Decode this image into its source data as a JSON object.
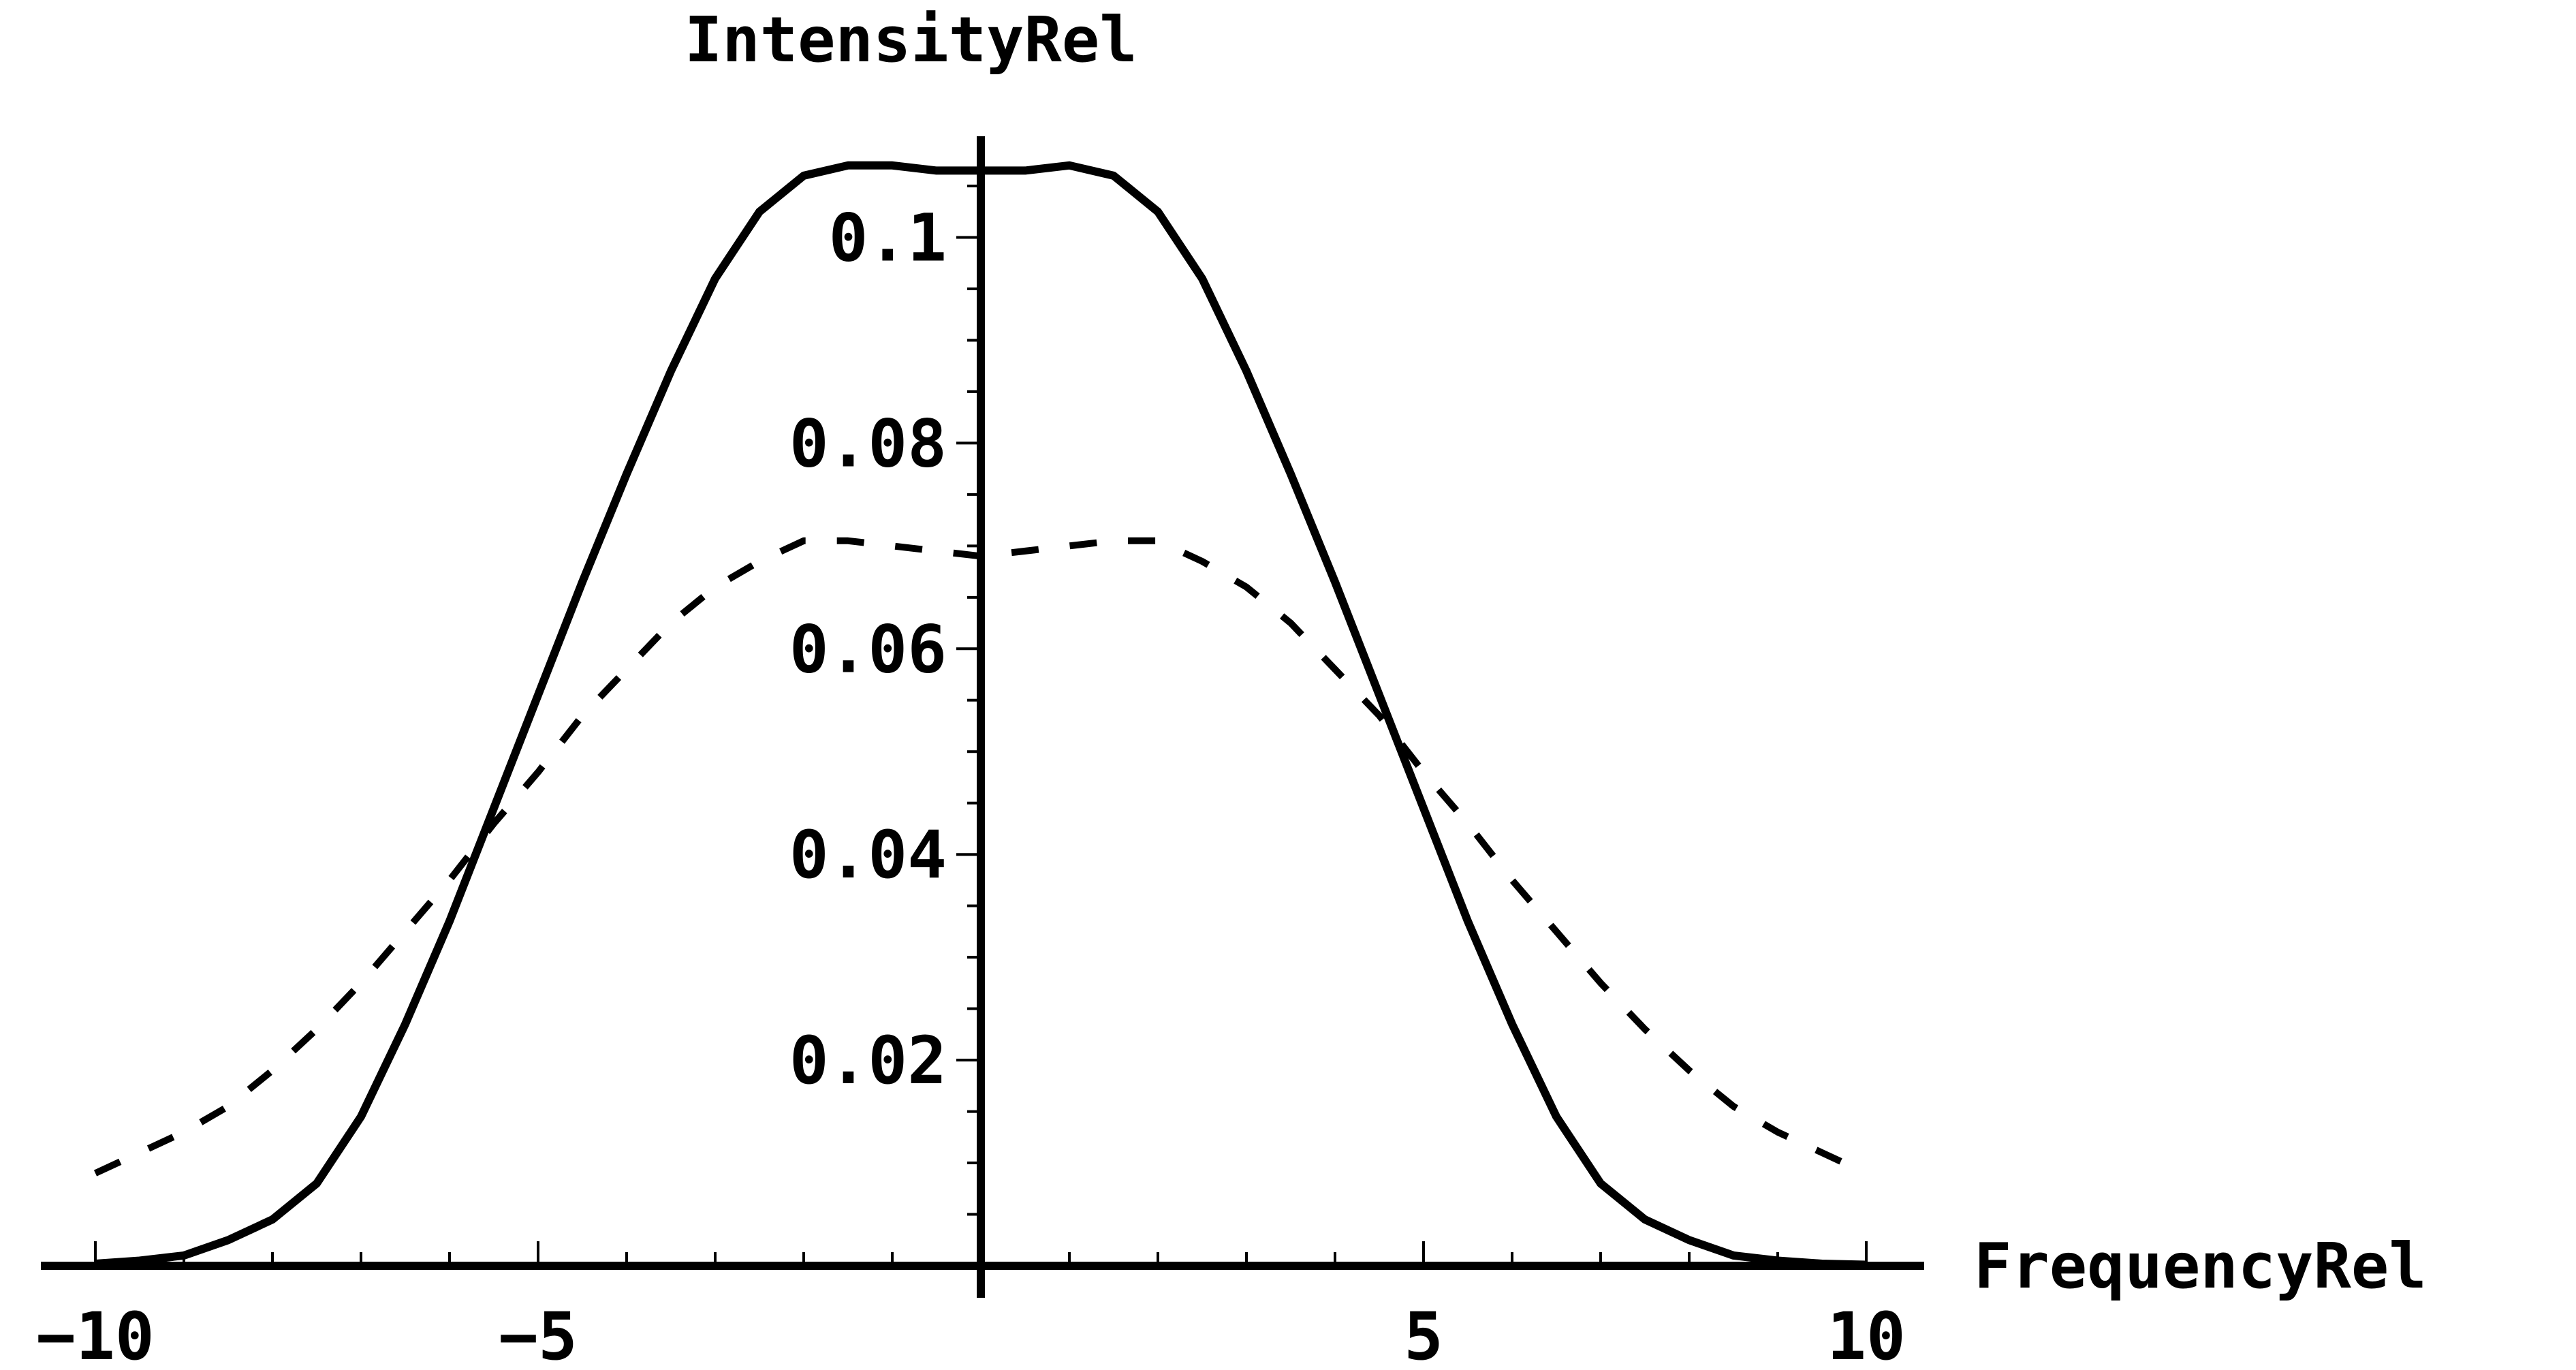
{
  "chart_data": {
    "type": "line",
    "title": "",
    "xlabel": "FrequencyRel",
    "ylabel": "IntensityRel",
    "xlim": [
      -10.5,
      10.5
    ],
    "ylim": [
      0,
      0.108
    ],
    "legend": "none",
    "grid": false,
    "x_ticks": [
      {
        "value": -10,
        "label": "−10"
      },
      {
        "value": -5,
        "label": "−5"
      },
      {
        "value": 5,
        "label": "5"
      },
      {
        "value": 10,
        "label": "10"
      }
    ],
    "y_ticks": [
      {
        "value": 0.02,
        "label": "0.02"
      },
      {
        "value": 0.04,
        "label": "0.04"
      },
      {
        "value": 0.06,
        "label": "0.06"
      },
      {
        "value": 0.08,
        "label": "0.08"
      },
      {
        "value": 0.1,
        "label": "0.1"
      }
    ],
    "series": [
      {
        "style": "solid",
        "color": "#000000",
        "x": [
          -10,
          -9.5,
          -9,
          -8.5,
          -8,
          -7.5,
          -7,
          -6.5,
          -6,
          -5.5,
          -5,
          -4.5,
          -4,
          -3.5,
          -3,
          -2.5,
          -2,
          -1.5,
          -1,
          -0.5,
          0,
          0.5,
          1,
          1.5,
          2,
          2.5,
          3,
          3.5,
          4,
          4.5,
          5,
          5.5,
          6,
          6.5,
          7,
          7.5,
          8,
          8.5,
          9,
          9.5,
          10
        ],
        "y": [
          0.0002,
          0.0005,
          0.001,
          0.0025,
          0.0045,
          0.008,
          0.0145,
          0.0235,
          0.0335,
          0.0445,
          0.0555,
          0.0665,
          0.077,
          0.087,
          0.096,
          0.1025,
          0.106,
          0.107,
          0.107,
          0.1065,
          0.1065,
          0.1065,
          0.107,
          0.106,
          0.1025,
          0.096,
          0.087,
          0.077,
          0.0665,
          0.0555,
          0.0445,
          0.0335,
          0.0235,
          0.0145,
          0.008,
          0.0045,
          0.0025,
          0.001,
          0.0005,
          0.0002,
          0.0001
        ]
      },
      {
        "style": "dashed",
        "color": "#000000",
        "x": [
          -10,
          -9.5,
          -9,
          -8.5,
          -8,
          -7.5,
          -7,
          -6.5,
          -6,
          -5.5,
          -5,
          -4.5,
          -4,
          -3.5,
          -3,
          -2.5,
          -2,
          -1.5,
          -1,
          -0.5,
          0,
          0.5,
          1,
          1.5,
          2,
          2.5,
          3,
          3.5,
          4,
          4.5,
          5,
          5.5,
          6,
          6.5,
          7,
          7.5,
          8,
          8.5,
          9,
          9.5,
          10
        ],
        "y": [
          0.009,
          0.011,
          0.013,
          0.0155,
          0.019,
          0.023,
          0.0275,
          0.0325,
          0.0375,
          0.043,
          0.048,
          0.0535,
          0.058,
          0.0625,
          0.066,
          0.0685,
          0.0705,
          0.0705,
          0.07,
          0.0695,
          0.069,
          0.0695,
          0.07,
          0.0705,
          0.0705,
          0.0685,
          0.066,
          0.0625,
          0.058,
          0.0535,
          0.048,
          0.043,
          0.0375,
          0.0325,
          0.0275,
          0.023,
          0.019,
          0.0155,
          0.013,
          0.011,
          0.009
        ]
      }
    ]
  }
}
